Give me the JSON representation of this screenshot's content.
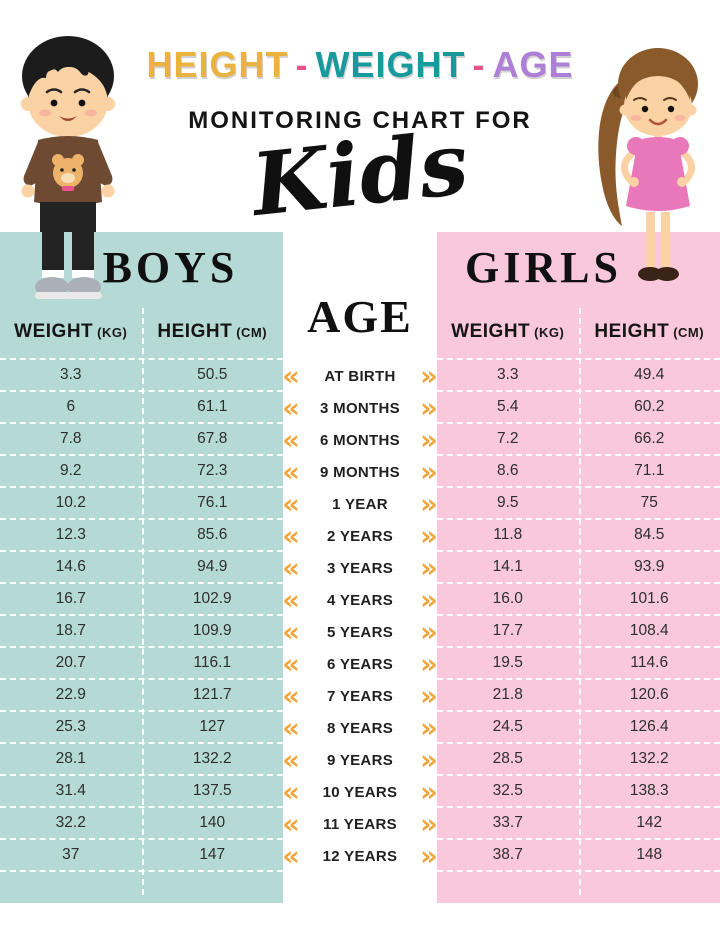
{
  "title": {
    "height_word": "HEIGHT",
    "dash1": "-",
    "weight_word": "WEIGHT",
    "dash2": "-",
    "age_word": "AGE",
    "subtitle": "MONITORING CHART FOR",
    "kids": "Kids"
  },
  "colors": {
    "height_word": "#eab33f",
    "weight_word": "#189a9d",
    "age_word": "#ae7fd6",
    "boys_panel": "#b5dad6",
    "girls_panel": "#f9c8da",
    "chevron": "#f2a43a"
  },
  "boys_table": {
    "title": "BOYS",
    "col1": "WEIGHT",
    "col1_unit": "(KG)",
    "col2": "HEIGHT",
    "col2_unit": "(CM)",
    "rows": [
      {
        "weight": "3.3",
        "height": "50.5"
      },
      {
        "weight": "6",
        "height": "61.1"
      },
      {
        "weight": "7.8",
        "height": "67.8"
      },
      {
        "weight": "9.2",
        "height": "72.3"
      },
      {
        "weight": "10.2",
        "height": "76.1"
      },
      {
        "weight": "12.3",
        "height": "85.6"
      },
      {
        "weight": "14.6",
        "height": "94.9"
      },
      {
        "weight": "16.7",
        "height": "102.9"
      },
      {
        "weight": "18.7",
        "height": "109.9"
      },
      {
        "weight": "20.7",
        "height": "116.1"
      },
      {
        "weight": "22.9",
        "height": "121.7"
      },
      {
        "weight": "25.3",
        "height": "127"
      },
      {
        "weight": "28.1",
        "height": "132.2"
      },
      {
        "weight": "31.4",
        "height": "137.5"
      },
      {
        "weight": "32.2",
        "height": "140"
      },
      {
        "weight": "37",
        "height": "147"
      }
    ]
  },
  "girls_table": {
    "title": "GIRLS",
    "col1": "WEIGHT",
    "col1_unit": "(KG)",
    "col2": "HEIGHT",
    "col2_unit": "(CM)",
    "rows": [
      {
        "weight": "3.3",
        "height": "49.4"
      },
      {
        "weight": "5.4",
        "height": "60.2"
      },
      {
        "weight": "7.2",
        "height": "66.2"
      },
      {
        "weight": "8.6",
        "height": "71.1"
      },
      {
        "weight": "9.5",
        "height": "75"
      },
      {
        "weight": "11.8",
        "height": "84.5"
      },
      {
        "weight": "14.1",
        "height": "93.9"
      },
      {
        "weight": "16.0",
        "height": "101.6"
      },
      {
        "weight": "17.7",
        "height": "108.4"
      },
      {
        "weight": "19.5",
        "height": "114.6"
      },
      {
        "weight": "21.8",
        "height": "120.6"
      },
      {
        "weight": "24.5",
        "height": "126.4"
      },
      {
        "weight": "28.5",
        "height": "132.2"
      },
      {
        "weight": "32.5",
        "height": "138.3"
      },
      {
        "weight": "33.7",
        "height": "142"
      },
      {
        "weight": "38.7",
        "height": "148"
      }
    ]
  },
  "age_column": {
    "title": "AGE",
    "items": [
      "AT BIRTH",
      "3 MONTHS",
      "6 MONTHS",
      "9 MONTHS",
      "1 YEAR",
      "2 YEARS",
      "3 YEARS",
      "4 YEARS",
      "5 YEARS",
      "6 YEARS",
      "7 YEARS",
      "8 YEARS",
      "9 YEARS",
      "10 YEARS",
      "11 YEARS",
      "12 YEARS"
    ]
  },
  "chart_data": {
    "type": "table",
    "title": "HEIGHT - WEIGHT - AGE MONITORING CHART FOR KIDS",
    "categories": [
      "At Birth",
      "3 Months",
      "6 Months",
      "9 Months",
      "1 Year",
      "2 Years",
      "3 Years",
      "4 Years",
      "5 Years",
      "6 Years",
      "7 Years",
      "8 Years",
      "9 Years",
      "10 Years",
      "11 Years",
      "12 Years"
    ],
    "series": [
      {
        "name": "Boys Weight (kg)",
        "values": [
          3.3,
          6,
          7.8,
          9.2,
          10.2,
          12.3,
          14.6,
          16.7,
          18.7,
          20.7,
          22.9,
          25.3,
          28.1,
          31.4,
          32.2,
          37
        ]
      },
      {
        "name": "Boys Height (cm)",
        "values": [
          50.5,
          61.1,
          67.8,
          72.3,
          76.1,
          85.6,
          94.9,
          102.9,
          109.9,
          116.1,
          121.7,
          127,
          132.2,
          137.5,
          140,
          147
        ]
      },
      {
        "name": "Girls Weight (kg)",
        "values": [
          3.3,
          5.4,
          7.2,
          8.6,
          9.5,
          11.8,
          14.1,
          16.0,
          17.7,
          19.5,
          21.8,
          24.5,
          28.5,
          32.5,
          33.7,
          38.7
        ]
      },
      {
        "name": "Girls Height (cm)",
        "values": [
          49.4,
          60.2,
          66.2,
          71.1,
          75,
          84.5,
          93.9,
          101.6,
          108.4,
          114.6,
          120.6,
          126.4,
          132.2,
          138.3,
          142,
          148
        ]
      }
    ]
  }
}
